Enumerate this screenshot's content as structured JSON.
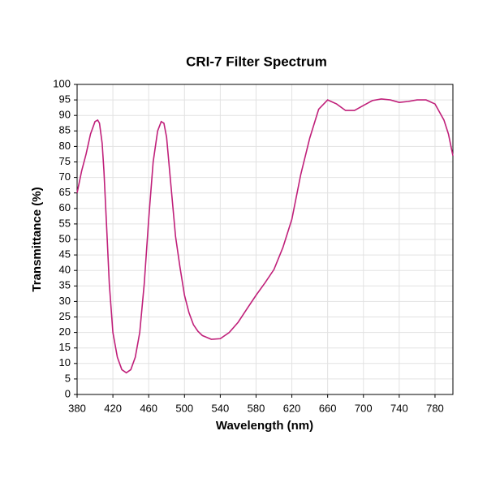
{
  "chart_data": {
    "type": "line",
    "title": "CRI-7 Filter Spectrum",
    "x_label": "Wavelength (nm)",
    "y_label": "Transmittance (%)",
    "x": [
      380,
      385,
      390,
      395,
      400,
      403,
      405,
      408,
      410,
      413,
      416,
      420,
      425,
      430,
      435,
      440,
      445,
      450,
      455,
      460,
      465,
      470,
      474,
      477,
      480,
      485,
      490,
      495,
      500,
      505,
      510,
      515,
      520,
      530,
      540,
      550,
      560,
      570,
      580,
      590,
      600,
      610,
      620,
      630,
      640,
      650,
      660,
      670,
      680,
      690,
      700,
      710,
      720,
      730,
      740,
      750,
      760,
      770,
      780,
      790,
      795,
      800
    ],
    "series": [
      {
        "name": "CRI-7",
        "color": "#c0207a",
        "values": [
          65,
          72,
          77.5,
          84,
          88,
          88.5,
          87.5,
          81,
          72,
          54,
          35.6,
          20,
          12,
          8,
          7,
          8,
          12,
          20,
          35.6,
          56.5,
          75,
          85,
          88,
          87.5,
          83,
          67,
          51,
          41,
          32,
          26.4,
          22.5,
          20.4,
          19,
          17.8,
          18,
          20,
          23.3,
          27.7,
          32,
          36,
          40.3,
          47.4,
          56.5,
          71,
          82.7,
          92,
          95,
          93.7,
          91.6,
          91.6,
          93.2,
          94.8,
          95.3,
          95,
          94.2,
          94.5,
          95,
          95,
          93.7,
          88.5,
          84,
          77
        ]
      }
    ],
    "xlim": [
      380,
      800
    ],
    "xticks": [
      380,
      420,
      460,
      500,
      540,
      580,
      620,
      660,
      700,
      740,
      780
    ],
    "ylim": [
      0,
      100
    ],
    "yticks": [
      0,
      5,
      10,
      15,
      20,
      25,
      30,
      35,
      40,
      45,
      50,
      55,
      60,
      65,
      70,
      75,
      80,
      85,
      90,
      95,
      100
    ],
    "grid": true
  }
}
